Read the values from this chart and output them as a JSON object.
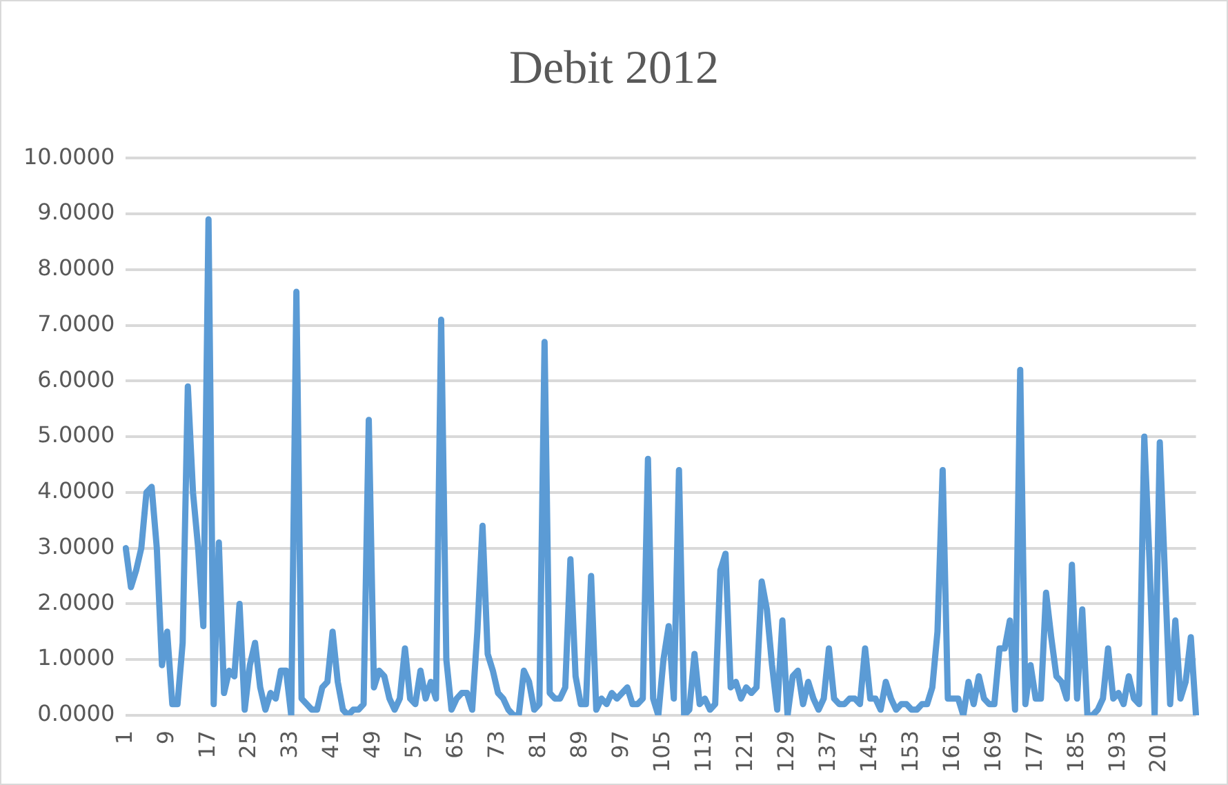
{
  "chart_data": {
    "type": "line",
    "title": "Debit 2012",
    "categories": [
      "1",
      null,
      null,
      null,
      null,
      null,
      null,
      null,
      "9",
      null,
      null,
      null,
      null,
      null,
      null,
      null,
      "17",
      null,
      null,
      null,
      null,
      null,
      null,
      null,
      "25",
      null,
      null,
      null,
      null,
      null,
      null,
      null,
      "33",
      null,
      null,
      null,
      null,
      null,
      null,
      null,
      "41",
      null,
      null,
      null,
      null,
      null,
      null,
      null,
      "49",
      null,
      null,
      null,
      null,
      null,
      null,
      null,
      "57",
      null,
      null,
      null,
      null,
      null,
      null,
      null,
      "65",
      null,
      null,
      null,
      null,
      null,
      null,
      null,
      "73",
      null,
      null,
      null,
      null,
      null,
      null,
      null,
      "81",
      null,
      null,
      null,
      null,
      null,
      null,
      null,
      "89",
      null,
      null,
      null,
      null,
      null,
      null,
      null,
      "97",
      null,
      null,
      null,
      null,
      null,
      null,
      null,
      "105",
      null,
      null,
      null,
      null,
      null,
      null,
      null,
      "113",
      null,
      null,
      null,
      null,
      null,
      null,
      null,
      "121",
      null,
      null,
      null,
      null,
      null,
      null,
      null,
      "129",
      null,
      null,
      null,
      null,
      null,
      null,
      null,
      "137",
      null,
      null,
      null,
      null,
      null,
      null,
      null,
      "145",
      null,
      null,
      null,
      null,
      null,
      null,
      null,
      "153",
      null,
      null,
      null,
      null,
      null,
      null,
      null,
      "161",
      null,
      null,
      null,
      null,
      null,
      null,
      null,
      "169",
      null,
      null,
      null,
      null,
      null,
      null,
      null,
      "177",
      null,
      null,
      null,
      null,
      null,
      null,
      null,
      "185",
      null,
      null,
      null,
      null,
      null,
      null,
      null,
      "193",
      null,
      null,
      null,
      null,
      null,
      null,
      null,
      "201",
      null,
      null,
      null,
      null,
      null,
      null,
      null
    ],
    "series": [
      {
        "color": "#5b9bd5",
        "values": [
          3.0,
          2.3,
          2.6,
          3.0,
          4.0,
          4.1,
          3.0,
          0.9,
          1.5,
          0.2,
          0.2,
          1.3,
          5.9,
          4.0,
          3.0,
          1.6,
          8.9,
          0.2,
          3.1,
          0.4,
          0.8,
          0.7,
          2.0,
          0.1,
          0.9,
          1.3,
          0.5,
          0.1,
          0.4,
          0.3,
          0.8,
          0.8,
          0.0,
          7.6,
          0.3,
          0.2,
          0.1,
          0.1,
          0.5,
          0.6,
          1.5,
          0.6,
          0.1,
          0.0,
          0.1,
          0.1,
          0.2,
          5.3,
          0.5,
          0.8,
          0.7,
          0.3,
          0.1,
          0.3,
          1.2,
          0.3,
          0.2,
          0.8,
          0.3,
          0.6,
          0.3,
          7.1,
          1.0,
          0.1,
          0.3,
          0.4,
          0.4,
          0.1,
          1.5,
          3.4,
          1.1,
          0.8,
          0.4,
          0.3,
          0.1,
          0.0,
          0.0,
          0.8,
          0.6,
          0.1,
          0.2,
          6.7,
          0.4,
          0.3,
          0.3,
          0.5,
          2.8,
          0.7,
          0.2,
          0.2,
          2.5,
          0.1,
          0.3,
          0.2,
          0.4,
          0.3,
          0.4,
          0.5,
          0.2,
          0.2,
          0.3,
          4.6,
          0.3,
          0.0,
          1.0,
          1.6,
          0.3,
          4.4,
          0.0,
          0.1,
          1.1,
          0.2,
          0.3,
          0.1,
          0.2,
          2.6,
          2.9,
          0.5,
          0.6,
          0.3,
          0.5,
          0.4,
          0.5,
          2.4,
          1.9,
          0.9,
          0.1,
          1.7,
          0.0,
          0.7,
          0.8,
          0.2,
          0.6,
          0.3,
          0.1,
          0.3,
          1.2,
          0.3,
          0.2,
          0.2,
          0.3,
          0.3,
          0.2,
          1.2,
          0.3,
          0.3,
          0.1,
          0.6,
          0.3,
          0.1,
          0.2,
          0.2,
          0.1,
          0.1,
          0.2,
          0.2,
          0.5,
          1.5,
          4.4,
          0.3,
          0.3,
          0.3,
          0.0,
          0.6,
          0.2,
          0.7,
          0.3,
          0.2,
          0.2,
          1.2,
          1.2,
          1.7,
          0.1,
          6.2,
          0.2,
          0.9,
          0.3,
          0.3,
          2.2,
          1.4,
          0.7,
          0.6,
          0.3,
          2.7,
          0.3,
          1.9,
          0.0,
          0.0,
          0.1,
          0.3,
          1.2,
          0.3,
          0.4,
          0.2,
          0.7,
          0.3,
          0.2,
          5.0,
          2.8,
          0.0,
          4.9,
          2.5,
          0.2,
          1.7,
          0.3,
          0.6,
          1.4,
          0.0
        ]
      }
    ],
    "ylim": [
      0,
      10
    ],
    "yticks": [
      {
        "value": 0,
        "label": "0.0000"
      },
      {
        "value": 1,
        "label": "1.0000"
      },
      {
        "value": 2,
        "label": "2.0000"
      },
      {
        "value": 3,
        "label": "3.0000"
      },
      {
        "value": 4,
        "label": "4.0000"
      },
      {
        "value": 5,
        "label": "5.0000"
      },
      {
        "value": 6,
        "label": "6.0000"
      },
      {
        "value": 7,
        "label": "7.0000"
      },
      {
        "value": 8,
        "label": "8.0000"
      },
      {
        "value": 9,
        "label": "9.0000"
      },
      {
        "value": 10,
        "label": "10.0000"
      }
    ],
    "grid": "y",
    "legend": false,
    "marker": "none",
    "line_style": "solid"
  }
}
